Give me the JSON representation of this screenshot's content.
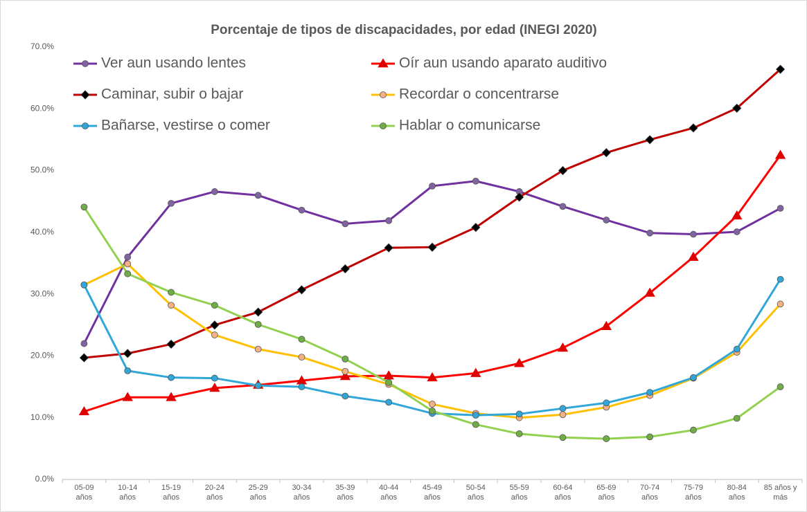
{
  "chart_data": {
    "type": "line",
    "title": "Porcentaje de tipos de discapacidades, por edad (INEGI 2020)",
    "categories": [
      "05-09 años",
      "10-14 años",
      "15-19 años",
      "20-24 años",
      "25-29 años",
      "30-34 años",
      "35-39 años",
      "40-44 años",
      "45-49 años",
      "50-54 años",
      "55-59 años",
      "60-64 años",
      "65-69 años",
      "70-74 años",
      "75-79 años",
      "80-84 años",
      "85 años y más"
    ],
    "ylim": [
      0,
      70
    ],
    "yticks": [
      {
        "value": 0,
        "label": "0.0%"
      },
      {
        "value": 10,
        "label": "10.0%"
      },
      {
        "value": 20,
        "label": "20.0%"
      },
      {
        "value": 30,
        "label": "30.0%"
      },
      {
        "value": 40,
        "label": "40.0%"
      },
      {
        "value": 50,
        "label": "50.0%"
      },
      {
        "value": 60,
        "label": "60.0%"
      },
      {
        "value": 70,
        "label": "70.0%"
      }
    ],
    "grid": false,
    "series": [
      {
        "name": "Ver aun usando lentes",
        "color": "#7030a0",
        "marker": "circle",
        "marker_color": "#8064a2",
        "values": [
          22.0,
          36.0,
          44.7,
          46.6,
          46.0,
          43.6,
          41.4,
          41.9,
          47.5,
          48.3,
          46.6,
          44.2,
          42.0,
          39.9,
          39.7,
          40.1,
          43.9
        ]
      },
      {
        "name": "Oír aun usando aparato auditivo",
        "color": "#ff0000",
        "marker": "triangle",
        "marker_color": "#e00000",
        "values": [
          11.0,
          13.3,
          13.3,
          14.8,
          15.3,
          16.0,
          16.7,
          16.8,
          16.5,
          17.2,
          18.8,
          21.3,
          24.8,
          30.2,
          36.0,
          42.7,
          52.5
        ]
      },
      {
        "name": "Caminar, subir o bajar",
        "color": "#c00000",
        "marker": "diamond",
        "marker_color": "#000000",
        "values": [
          19.7,
          20.4,
          21.9,
          25.0,
          27.1,
          30.7,
          34.1,
          37.5,
          37.6,
          40.8,
          45.7,
          50.0,
          52.9,
          55.0,
          56.9,
          60.1,
          66.4
        ]
      },
      {
        "name": "Recordar o concentrarse",
        "color": "#ffc000",
        "marker": "circle",
        "marker_color": "#f4b183",
        "values": [
          31.5,
          34.9,
          28.2,
          23.4,
          21.1,
          19.8,
          17.5,
          15.4,
          12.2,
          10.7,
          10.0,
          10.5,
          11.7,
          13.6,
          16.4,
          20.6,
          28.4
        ]
      },
      {
        "name": "Bañarse, vestirse o comer",
        "color": "#31a6d8",
        "marker": "circle",
        "marker_color": "#31a6d8",
        "values": [
          31.5,
          17.6,
          16.5,
          16.4,
          15.2,
          15.0,
          13.5,
          12.5,
          10.7,
          10.4,
          10.6,
          11.5,
          12.4,
          14.1,
          16.5,
          21.1,
          32.4
        ]
      },
      {
        "name": "Hablar o comunicarse",
        "color": "#92d050",
        "marker": "circle",
        "marker_color": "#70ad47",
        "values": [
          44.1,
          33.3,
          30.3,
          28.2,
          25.1,
          22.7,
          19.5,
          15.7,
          11.1,
          8.9,
          7.4,
          6.8,
          6.6,
          6.9,
          8.0,
          9.9,
          15.0
        ]
      }
    ]
  }
}
